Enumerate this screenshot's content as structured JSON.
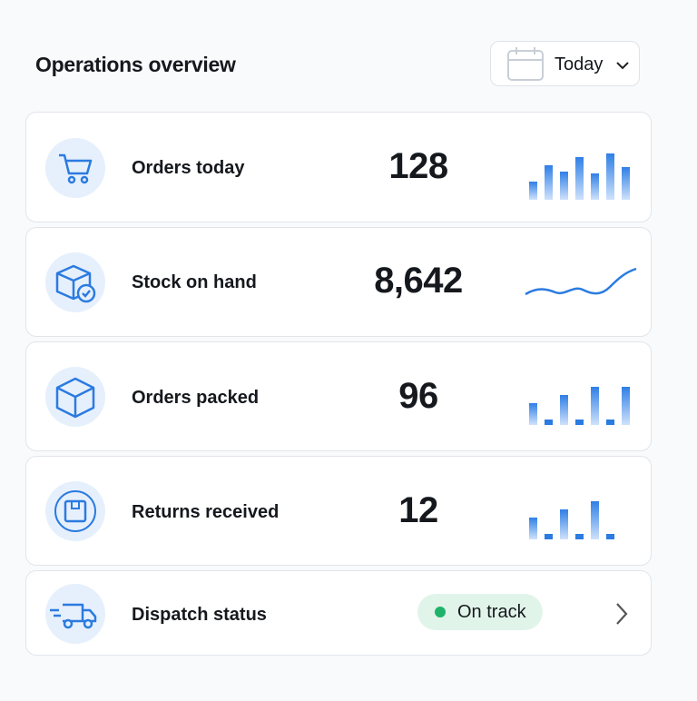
{
  "header": {
    "title": "Operations overview",
    "date_filter": "Today"
  },
  "rows": [
    {
      "label": "Orders today",
      "value": "128"
    },
    {
      "label": "Stock on hand",
      "value": "8,642"
    },
    {
      "label": "Orders packed",
      "value": "96"
    },
    {
      "label": "Returns received",
      "value": "12"
    },
    {
      "label": "Dispatch status",
      "status": "On track"
    }
  ]
}
